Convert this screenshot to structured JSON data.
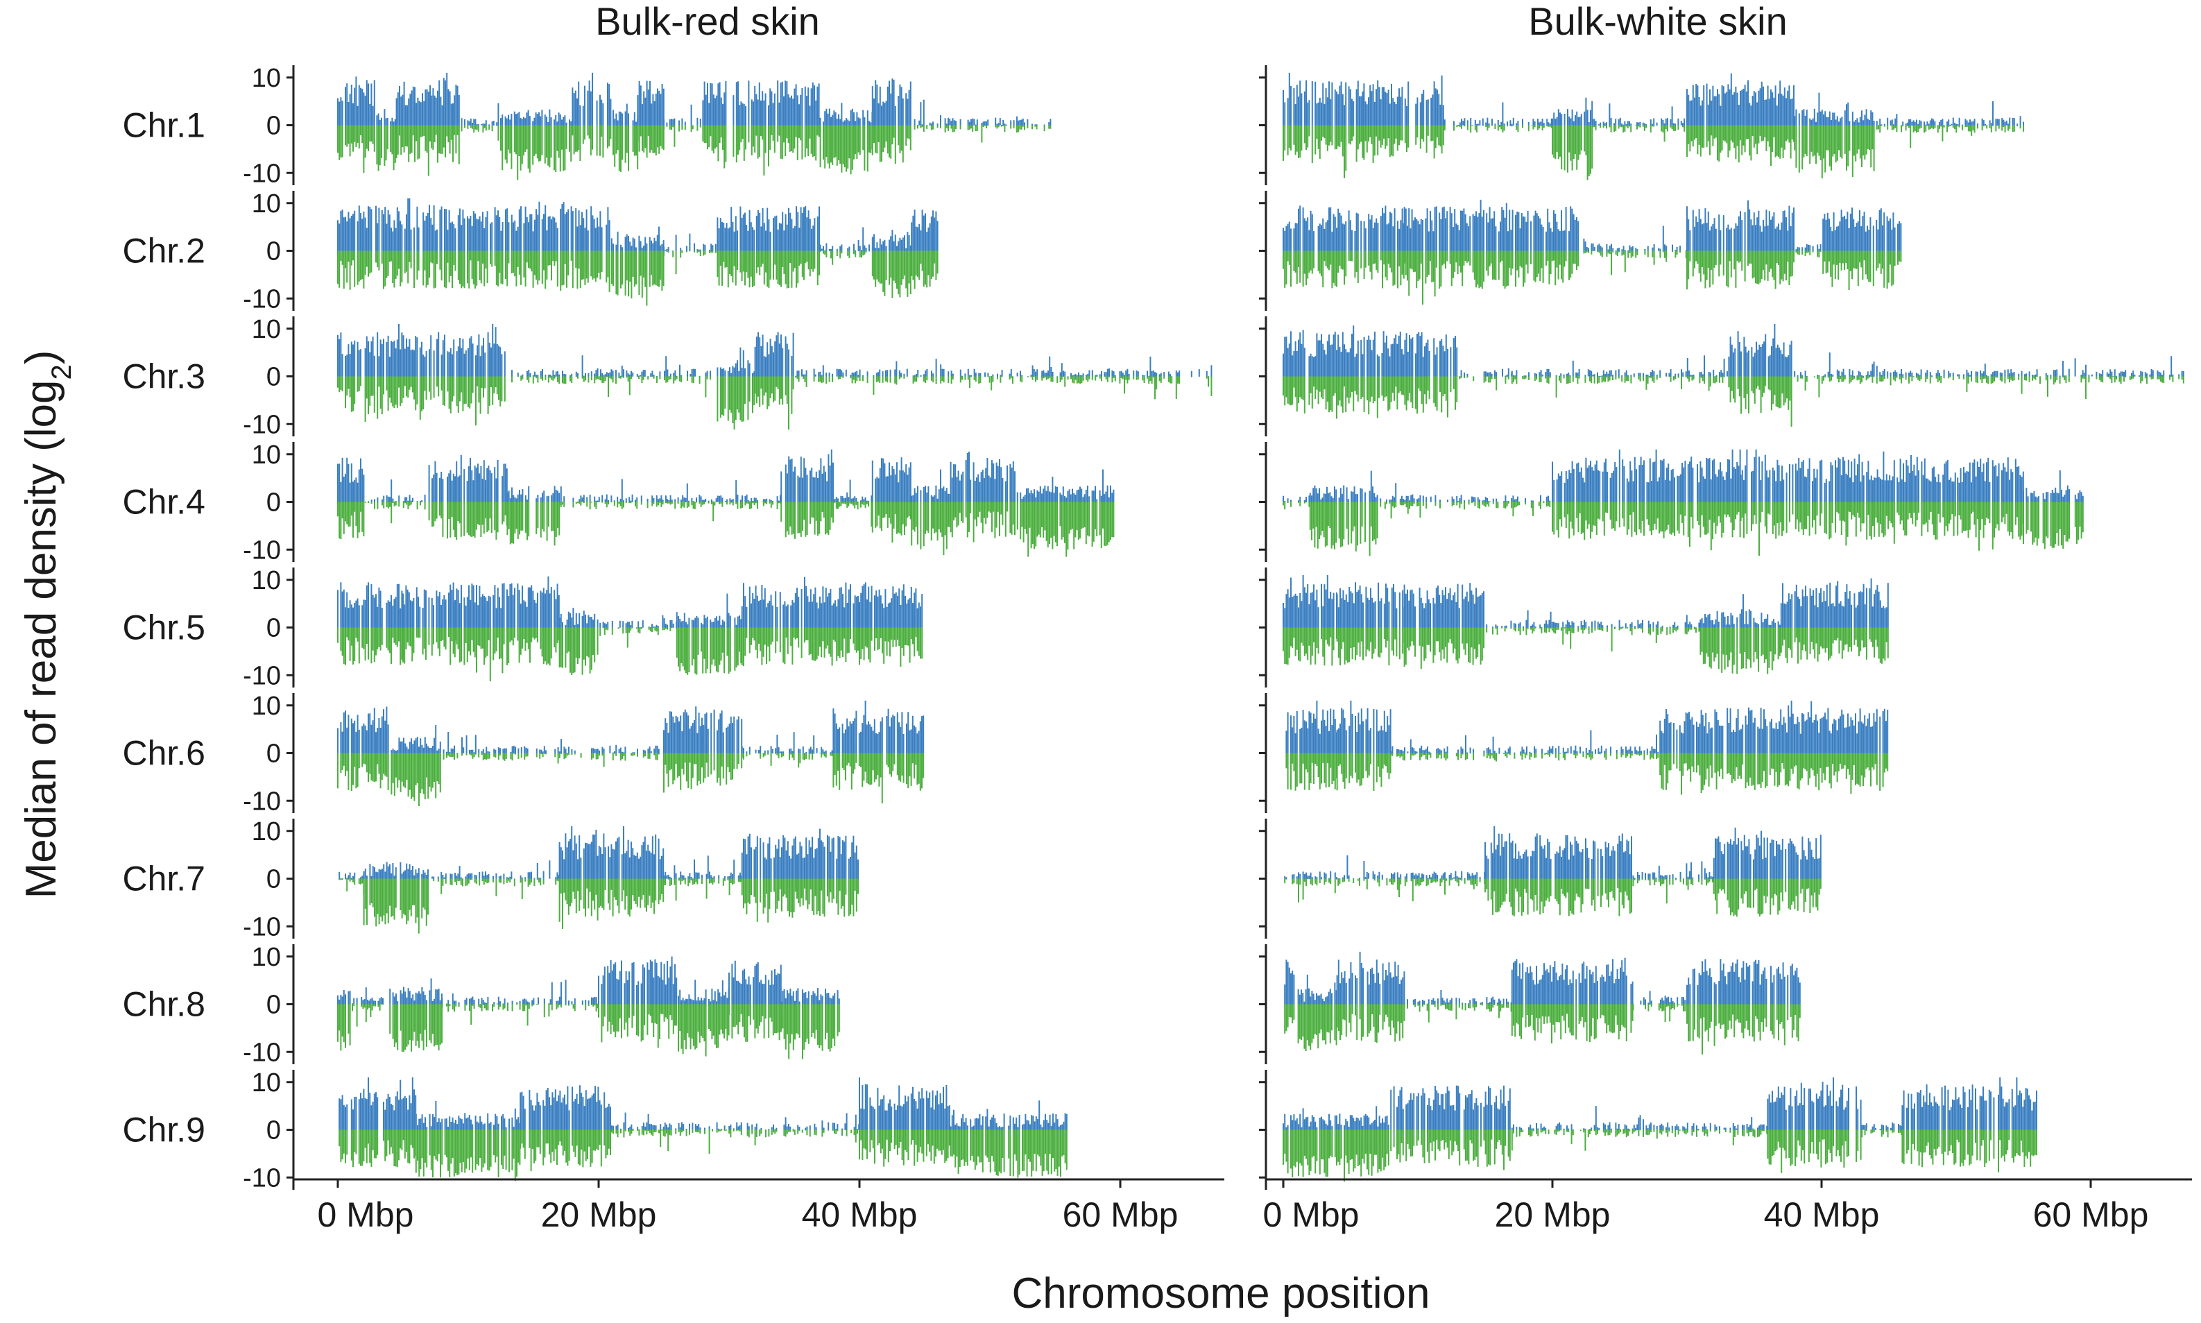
{
  "chart_data": {
    "type": "bar",
    "subtype": "mirrored-density-track",
    "panels": [
      "Bulk-red skin",
      "Bulk-white skin"
    ],
    "rows": [
      "Chr.1",
      "Chr.2",
      "Chr.3",
      "Chr.4",
      "Chr.5",
      "Chr.6",
      "Chr.7",
      "Chr.8",
      "Chr.9"
    ],
    "ylabel": "Median of read density (log",
    "ylabel_sub": "2",
    "ylabel_close": ")",
    "xlabel": "Chromosome position",
    "yticks": [
      10,
      0,
      -10
    ],
    "ytick_labels": [
      "10",
      "0",
      "-10"
    ],
    "ylim": [
      -12,
      12
    ],
    "xticks": [
      0,
      20,
      40,
      60
    ],
    "xtick_labels": [
      "0 Mbp",
      "20 Mbp",
      "40 Mbp",
      "60 Mbp"
    ],
    "xlim": [
      -3,
      67
    ],
    "series_colors": {
      "positive": "#3a7fc1",
      "negative": "#4caf3f"
    },
    "chromosome_lengths_mbp": [
      55,
      46,
      67,
      59.5,
      45,
      45,
      40,
      38.5,
      56
    ],
    "tracks": {
      "Bulk-red skin": [
        [
          [
            0,
            3,
            "b"
          ],
          [
            3,
            4.5,
            "g"
          ],
          [
            4.5,
            9.5,
            "b"
          ],
          [
            9.5,
            12.5,
            "c"
          ],
          [
            12.5,
            18,
            "g"
          ],
          [
            18,
            21,
            "b"
          ],
          [
            21,
            23,
            "g"
          ],
          [
            23,
            25,
            "b"
          ],
          [
            25,
            28,
            "c"
          ],
          [
            28,
            37,
            "b"
          ],
          [
            37,
            41,
            "g"
          ],
          [
            41,
            44,
            "b"
          ],
          [
            44,
            55,
            "c"
          ]
        ],
        [
          [
            0,
            21,
            "b"
          ],
          [
            21,
            25,
            "g"
          ],
          [
            25,
            29,
            "c"
          ],
          [
            29,
            32,
            "b"
          ],
          [
            32,
            37,
            "b"
          ],
          [
            37,
            41,
            "c"
          ],
          [
            41,
            44,
            "g"
          ],
          [
            44,
            46,
            "b"
          ]
        ],
        [
          [
            0,
            10,
            "b"
          ],
          [
            10,
            13,
            "b"
          ],
          [
            13,
            17,
            "c"
          ],
          [
            17,
            24,
            "c"
          ],
          [
            24,
            29,
            "c"
          ],
          [
            29,
            32,
            "g"
          ],
          [
            32,
            35,
            "b"
          ],
          [
            35,
            50,
            "c"
          ],
          [
            50,
            54,
            "c"
          ],
          [
            54,
            67,
            "c"
          ]
        ],
        [
          [
            0,
            2,
            "b"
          ],
          [
            2,
            7,
            "c"
          ],
          [
            7,
            13,
            "b"
          ],
          [
            13,
            17,
            "g"
          ],
          [
            17,
            22,
            "c"
          ],
          [
            22,
            34,
            "c"
          ],
          [
            34,
            38,
            "b"
          ],
          [
            38,
            41,
            "c"
          ],
          [
            41,
            44,
            "b"
          ],
          [
            44,
            47,
            "g"
          ],
          [
            47,
            52,
            "b"
          ],
          [
            52,
            59.5,
            "g"
          ]
        ],
        [
          [
            0,
            5,
            "b"
          ],
          [
            5,
            9,
            "b"
          ],
          [
            9,
            17,
            "b"
          ],
          [
            17,
            20,
            "g"
          ],
          [
            20,
            26,
            "c"
          ],
          [
            26,
            31,
            "g"
          ],
          [
            31,
            40,
            "b"
          ],
          [
            40,
            45,
            "b"
          ]
        ],
        [
          [
            0,
            4,
            "b"
          ],
          [
            4,
            8,
            "g"
          ],
          [
            8,
            25,
            "c"
          ],
          [
            25,
            31,
            "b"
          ],
          [
            31,
            38,
            "c"
          ],
          [
            38,
            45,
            "b"
          ]
        ],
        [
          [
            0,
            2,
            "c"
          ],
          [
            2,
            7,
            "g"
          ],
          [
            7,
            17,
            "c"
          ],
          [
            17,
            25,
            "b"
          ],
          [
            25,
            31,
            "c"
          ],
          [
            31,
            40,
            "b"
          ]
        ],
        [
          [
            0,
            1,
            "g"
          ],
          [
            1,
            4,
            "c"
          ],
          [
            4,
            8,
            "g"
          ],
          [
            8,
            20,
            "c"
          ],
          [
            20,
            26,
            "b"
          ],
          [
            26,
            30,
            "g"
          ],
          [
            30,
            34,
            "b"
          ],
          [
            34,
            38.5,
            "g"
          ]
        ],
        [
          [
            0,
            6,
            "b"
          ],
          [
            6,
            14,
            "g"
          ],
          [
            14,
            21,
            "b"
          ],
          [
            21,
            40,
            "c"
          ],
          [
            40,
            47,
            "b"
          ],
          [
            47,
            56,
            "g"
          ]
        ]
      ],
      "Bulk-white skin": [
        [
          [
            0,
            6,
            "b"
          ],
          [
            6,
            12,
            "b"
          ],
          [
            12,
            20,
            "c"
          ],
          [
            20,
            23,
            "g"
          ],
          [
            23,
            30,
            "c"
          ],
          [
            30,
            38,
            "b"
          ],
          [
            38,
            44,
            "g"
          ],
          [
            44,
            55,
            "c"
          ]
        ],
        [
          [
            0,
            9,
            "b"
          ],
          [
            9,
            15,
            "b"
          ],
          [
            15,
            22,
            "b"
          ],
          [
            22,
            30,
            "c"
          ],
          [
            30,
            38,
            "b"
          ],
          [
            38,
            40,
            "c"
          ],
          [
            40,
            46,
            "b"
          ]
        ],
        [
          [
            0,
            7,
            "b"
          ],
          [
            7,
            13,
            "b"
          ],
          [
            13,
            17,
            "c"
          ],
          [
            17,
            33,
            "c"
          ],
          [
            33,
            38,
            "b"
          ],
          [
            38,
            44,
            "c"
          ],
          [
            44,
            50,
            "c"
          ],
          [
            50,
            67,
            "c"
          ]
        ],
        [
          [
            0,
            2,
            "c"
          ],
          [
            2,
            7,
            "g"
          ],
          [
            7,
            13,
            "c"
          ],
          [
            13,
            20,
            "c"
          ],
          [
            20,
            34,
            "b"
          ],
          [
            34,
            42,
            "b"
          ],
          [
            42,
            50,
            "b"
          ],
          [
            50,
            55,
            "b"
          ],
          [
            55,
            59.5,
            "g"
          ]
        ],
        [
          [
            0,
            4,
            "b"
          ],
          [
            4,
            9,
            "b"
          ],
          [
            9,
            15,
            "b"
          ],
          [
            15,
            25,
            "c"
          ],
          [
            25,
            31,
            "c"
          ],
          [
            31,
            37,
            "g"
          ],
          [
            37,
            45,
            "b"
          ]
        ],
        [
          [
            0,
            4,
            "b"
          ],
          [
            4,
            8,
            "b"
          ],
          [
            8,
            28,
            "c"
          ],
          [
            28,
            33,
            "b"
          ],
          [
            33,
            45,
            "b"
          ]
        ],
        [
          [
            0,
            6,
            "c"
          ],
          [
            6,
            15,
            "c"
          ],
          [
            15,
            21,
            "b"
          ],
          [
            21,
            26,
            "b"
          ],
          [
            26,
            32,
            "c"
          ],
          [
            32,
            40,
            "b"
          ]
        ],
        [
          [
            0,
            1,
            "b"
          ],
          [
            1,
            4,
            "g"
          ],
          [
            4,
            9,
            "b"
          ],
          [
            9,
            17,
            "c"
          ],
          [
            17,
            26,
            "b"
          ],
          [
            26,
            30,
            "c"
          ],
          [
            30,
            38.5,
            "b"
          ]
        ],
        [
          [
            0,
            8,
            "g"
          ],
          [
            8,
            17,
            "b"
          ],
          [
            17,
            36,
            "c"
          ],
          [
            36,
            43,
            "b"
          ],
          [
            43,
            46,
            "c"
          ],
          [
            46,
            56,
            "b"
          ]
        ]
      ]
    }
  }
}
